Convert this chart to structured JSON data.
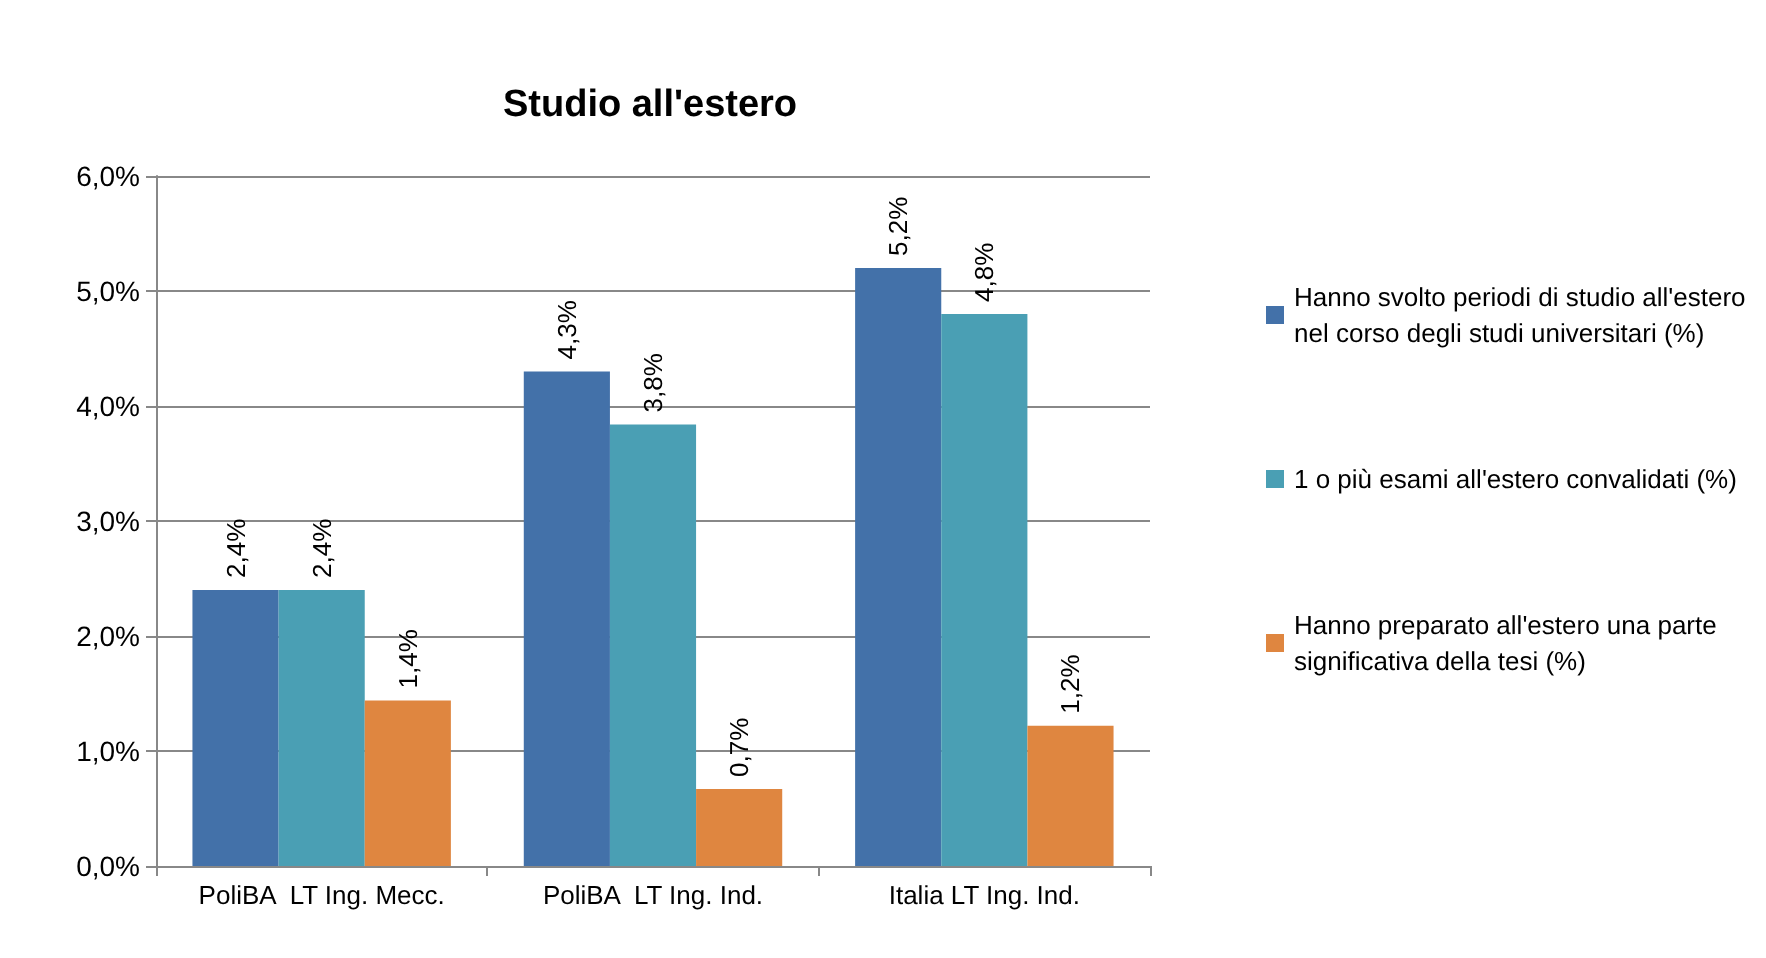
{
  "chart_data": {
    "type": "bar",
    "title": "Studio all'estero",
    "categories": [
      "PoliBA  LT Ing. Mecc.",
      "PoliBA  LT Ing. Ind.",
      "Italia LT Ing. Ind."
    ],
    "series": [
      {
        "name": "Hanno svolto periodi di studio all'estero nel corso degli studi universitari (%)",
        "color": "#4371a9",
        "values": [
          2.4,
          4.3,
          5.2
        ],
        "value_labels": [
          "2,4%",
          "4,3%",
          "5,2%"
        ]
      },
      {
        "name": "1 o più esami all'estero convalidati (%)",
        "color": "#4a9fb4",
        "values": [
          2.4,
          3.84,
          4.8
        ],
        "value_labels": [
          "2,4%",
          "3,8%",
          "4,8%"
        ]
      },
      {
        "name": "Hanno preparato all'estero una parte significativa della tesi (%)",
        "color": "#df8640",
        "values": [
          1.44,
          0.67,
          1.22
        ],
        "value_labels": [
          "1,4%",
          "0,7%",
          "1,2%"
        ]
      }
    ],
    "ylim": [
      0,
      6
    ],
    "yticks": [
      {
        "value": 0,
        "label": "0,0%"
      },
      {
        "value": 1,
        "label": "1,0%"
      },
      {
        "value": 2,
        "label": "2,0%"
      },
      {
        "value": 3,
        "label": "3,0%"
      },
      {
        "value": 4,
        "label": "4,0%"
      },
      {
        "value": 5,
        "label": "5,0%"
      },
      {
        "value": 6,
        "label": "6,0%"
      }
    ],
    "grid": "y",
    "legend": "right"
  }
}
